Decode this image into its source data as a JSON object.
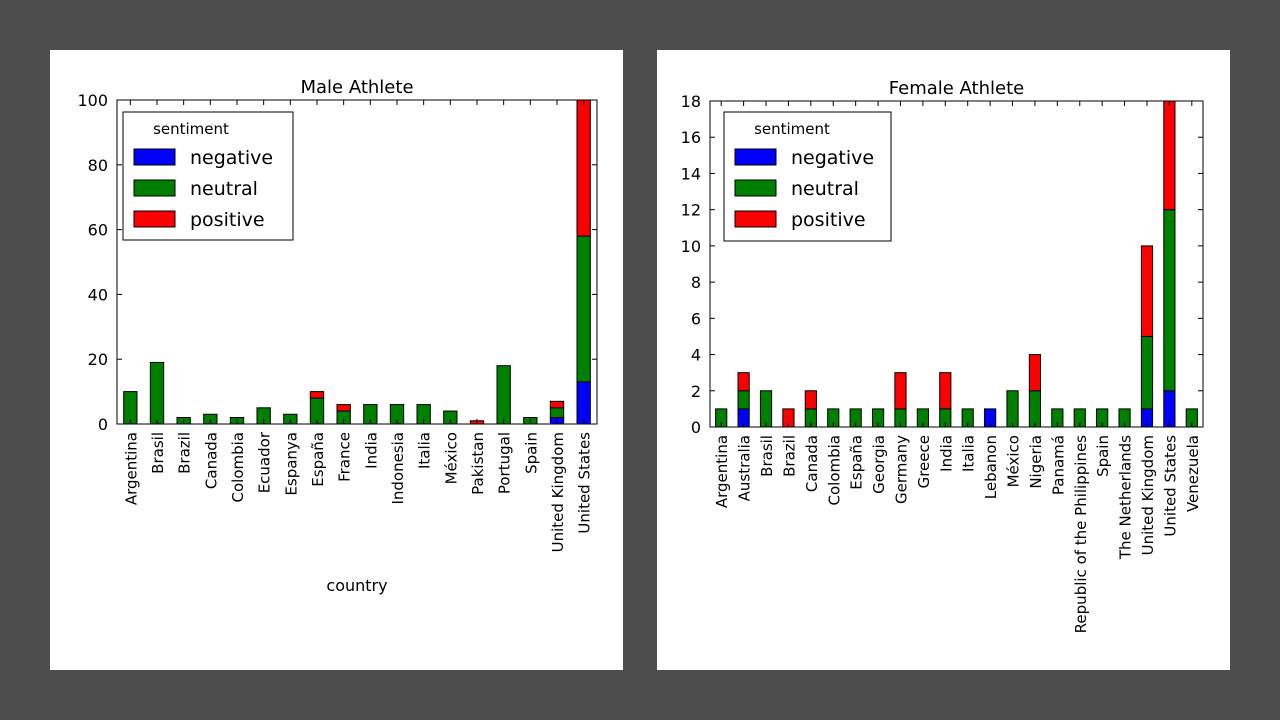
{
  "chart_data": [
    {
      "type": "bar",
      "stacked": true,
      "title": "Male Athlete",
      "xlabel": "country",
      "ylabel": "",
      "ylim": [
        0,
        100
      ],
      "yticks": [
        0,
        20,
        40,
        60,
        80,
        100
      ],
      "legend": {
        "title": "sentiment",
        "placement": "top-left"
      },
      "categories": [
        "Argentina",
        "Brasil",
        "Brazil",
        "Canada",
        "Colombia",
        "Ecuador",
        "Espanya",
        "España",
        "France",
        "India",
        "Indonesia",
        "Italia",
        "México",
        "Pakistan",
        "Portugal",
        "Spain",
        "United Kingdom",
        "United States"
      ],
      "series": [
        {
          "name": "negative",
          "color": "#0000ff",
          "values": [
            0,
            0,
            0,
            0,
            0,
            0,
            0,
            0,
            0,
            0,
            0,
            0,
            0,
            0,
            0,
            0,
            2,
            13
          ]
        },
        {
          "name": "neutral",
          "color": "#008000",
          "values": [
            10,
            19,
            2,
            3,
            2,
            5,
            3,
            8,
            4,
            6,
            6,
            6,
            4,
            0,
            18,
            2,
            3,
            45
          ]
        },
        {
          "name": "positive",
          "color": "#ff0000",
          "values": [
            0,
            0,
            0,
            0,
            0,
            0,
            0,
            2,
            2,
            0,
            0,
            0,
            0,
            1,
            0,
            0,
            2,
            42
          ]
        }
      ]
    },
    {
      "type": "bar",
      "stacked": true,
      "title": "Female Athlete",
      "xlabel": "",
      "ylabel": "",
      "ylim": [
        0,
        18
      ],
      "yticks": [
        0,
        2,
        4,
        6,
        8,
        10,
        12,
        14,
        16,
        18
      ],
      "legend": {
        "title": "sentiment",
        "placement": "top-left"
      },
      "categories": [
        "Argentina",
        "Australia",
        "Brasil",
        "Brazil",
        "Canada",
        "Colombia",
        "España",
        "Georgia",
        "Germany",
        "Greece",
        "India",
        "Italia",
        "Lebanon",
        "México",
        "Nigeria",
        "Panamá",
        "Republic of the Philippines",
        "Spain",
        "The Netherlands",
        "United Kingdom",
        "United States",
        "Venezuela"
      ],
      "series": [
        {
          "name": "negative",
          "color": "#0000ff",
          "values": [
            0,
            1,
            0,
            0,
            0,
            0,
            0,
            0,
            0,
            0,
            0,
            0,
            1,
            0,
            0,
            0,
            0,
            0,
            0,
            1,
            2,
            0
          ]
        },
        {
          "name": "neutral",
          "color": "#008000",
          "values": [
            1,
            1,
            2,
            0,
            1,
            1,
            1,
            1,
            1,
            1,
            1,
            1,
            0,
            2,
            2,
            1,
            1,
            1,
            1,
            4,
            10,
            1
          ]
        },
        {
          "name": "positive",
          "color": "#ff0000",
          "values": [
            0,
            1,
            0,
            1,
            1,
            0,
            0,
            0,
            2,
            0,
            2,
            0,
            0,
            0,
            2,
            0,
            0,
            0,
            0,
            5,
            6,
            0
          ]
        }
      ]
    }
  ]
}
